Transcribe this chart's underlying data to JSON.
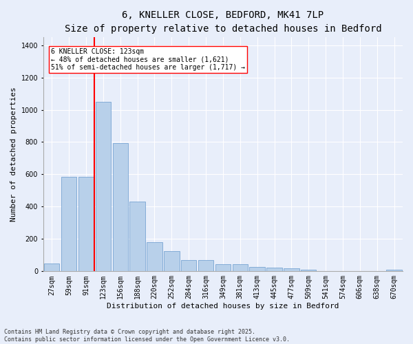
{
  "title": "6, KNELLER CLOSE, BEDFORD, MK41 7LP",
  "subtitle": "Size of property relative to detached houses in Bedford",
  "xlabel": "Distribution of detached houses by size in Bedford",
  "ylabel": "Number of detached properties",
  "categories": [
    "27sqm",
    "59sqm",
    "91sqm",
    "123sqm",
    "156sqm",
    "188sqm",
    "220sqm",
    "252sqm",
    "284sqm",
    "316sqm",
    "349sqm",
    "381sqm",
    "413sqm",
    "445sqm",
    "477sqm",
    "509sqm",
    "541sqm",
    "574sqm",
    "606sqm",
    "638sqm",
    "670sqm"
  ],
  "values": [
    47,
    585,
    585,
    1050,
    795,
    430,
    180,
    125,
    68,
    68,
    42,
    42,
    27,
    22,
    17,
    10,
    0,
    0,
    0,
    0,
    10
  ],
  "bar_color": "#b8d0ea",
  "bar_edge_color": "#6699cc",
  "reference_line_color": "red",
  "annotation_text": "6 KNELLER CLOSE: 123sqm\n← 48% of detached houses are smaller (1,621)\n51% of semi-detached houses are larger (1,717) →",
  "annotation_box_color": "white",
  "annotation_box_edge_color": "red",
  "ylim": [
    0,
    1450
  ],
  "yticks": [
    0,
    200,
    400,
    600,
    800,
    1000,
    1200,
    1400
  ],
  "background_color": "#e8eefa",
  "grid_color": "white",
  "footnote": "Contains HM Land Registry data © Crown copyright and database right 2025.\nContains public sector information licensed under the Open Government Licence v3.0.",
  "title_fontsize": 10,
  "xlabel_fontsize": 8,
  "ylabel_fontsize": 8,
  "tick_fontsize": 7,
  "annotation_fontsize": 7,
  "footnote_fontsize": 6
}
